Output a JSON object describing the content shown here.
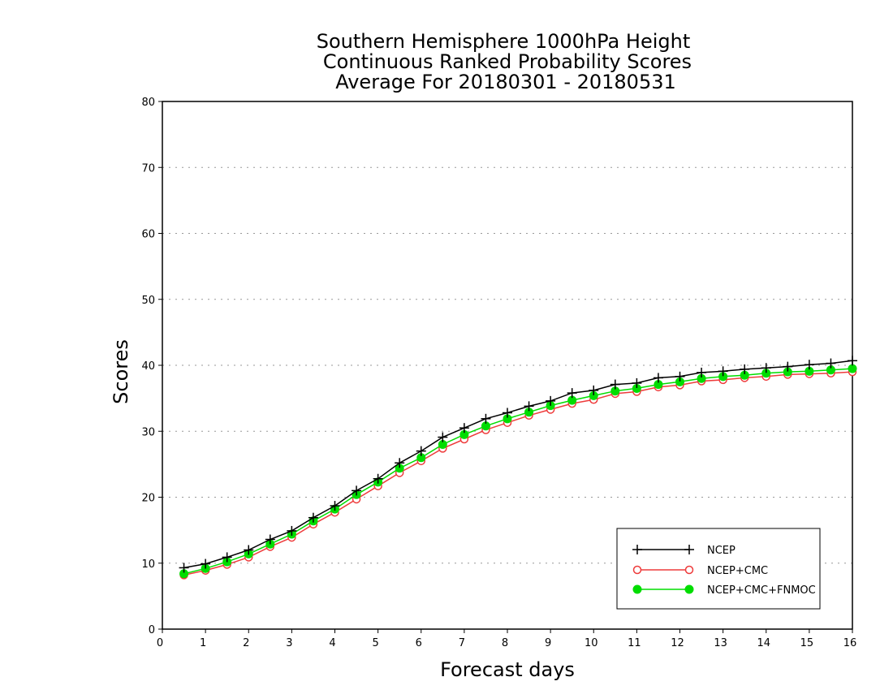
{
  "chart_data": {
    "type": "line",
    "title_lines": [
      "Southern Hemisphere 1000hPa Height",
      "Continuous Ranked Probability Scores",
      "Average For 20180301 - 20180531"
    ],
    "xlabel": "Forecast days",
    "ylabel": "Scores",
    "xlim": [
      0,
      16
    ],
    "ylim": [
      0,
      80
    ],
    "xticks": [
      "0",
      "1",
      "2",
      "3",
      "4",
      "5",
      "6",
      "7",
      "8",
      "9",
      "10",
      "11",
      "12",
      "13",
      "14",
      "15",
      "16"
    ],
    "yticks": [
      "0",
      "10",
      "20",
      "30",
      "40",
      "50",
      "60",
      "70",
      "80"
    ],
    "grid": "horizontal dotted",
    "legend_position": "bottom-right",
    "x": [
      0.5,
      1,
      1.5,
      2,
      2.5,
      3,
      3.5,
      4,
      4.5,
      5,
      5.5,
      6,
      6.5,
      7,
      7.5,
      8,
      8.5,
      9,
      9.5,
      10,
      10.5,
      11,
      11.5,
      12,
      12.5,
      13,
      13.5,
      14,
      14.5,
      15,
      15.5,
      16
    ],
    "series": [
      {
        "name": "NCEP",
        "color": "#000000",
        "marker": "plus",
        "values": [
          9.3,
          9.9,
          10.9,
          12.0,
          13.6,
          14.9,
          16.9,
          18.7,
          21.0,
          22.8,
          25.2,
          27.0,
          29.1,
          30.5,
          31.9,
          32.8,
          33.8,
          34.6,
          35.8,
          36.2,
          37.1,
          37.3,
          38.1,
          38.3,
          38.9,
          39.1,
          39.4,
          39.6,
          39.8,
          40.1,
          40.3,
          40.7
        ]
      },
      {
        "name": "NCEP+CMC",
        "color": "#ee3b3b",
        "marker": "open-circle",
        "values": [
          8.2,
          8.9,
          9.8,
          10.9,
          12.5,
          13.9,
          15.9,
          17.7,
          19.7,
          21.7,
          23.7,
          25.5,
          27.4,
          28.8,
          30.2,
          31.3,
          32.4,
          33.3,
          34.2,
          34.8,
          35.7,
          36.0,
          36.7,
          37.0,
          37.6,
          37.8,
          38.1,
          38.3,
          38.6,
          38.7,
          38.8,
          39.0
        ]
      },
      {
        "name": "NCEP+CMC+FNMOC",
        "color": "#00dd00",
        "marker": "filled-circle",
        "values": [
          8.4,
          9.2,
          10.2,
          11.4,
          12.9,
          14.4,
          16.4,
          18.2,
          20.4,
          22.3,
          24.4,
          26.0,
          28.0,
          29.5,
          30.8,
          31.9,
          32.9,
          33.9,
          34.7,
          35.4,
          36.1,
          36.5,
          37.1,
          37.5,
          38.0,
          38.3,
          38.5,
          38.8,
          39.0,
          39.1,
          39.3,
          39.5
        ]
      }
    ]
  }
}
